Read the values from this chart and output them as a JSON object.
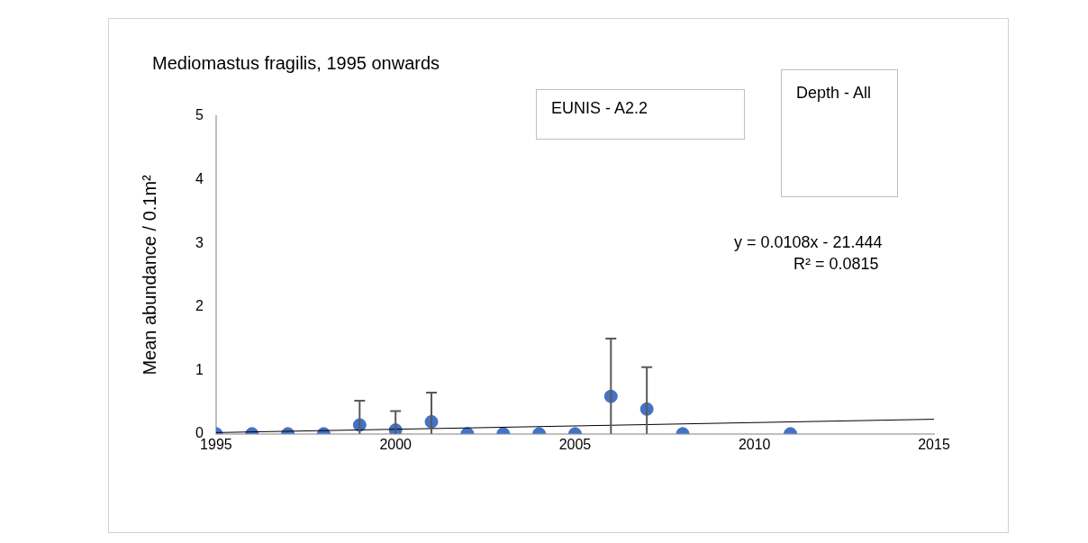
{
  "chart_data": {
    "type": "scatter",
    "title": "Mediomastus fragilis, 1995 onwards",
    "ylabel": "Mean abundance / 0.1m²",
    "x": [
      1995,
      1996,
      1997,
      1998,
      1999,
      2000,
      2001,
      2002,
      2003,
      2004,
      2005,
      2006,
      2007,
      2008,
      2011
    ],
    "series": [
      {
        "color": "#4472c4",
        "marker": "circle",
        "values": [
          0,
          0,
          0,
          0,
          0.14,
          0.06,
          0.19,
          0,
          0,
          0,
          0,
          0.59,
          0.39,
          0,
          0
        ],
        "errors": [
          null,
          null,
          null,
          null,
          [
            0,
            0.52
          ],
          [
            0,
            0.36
          ],
          [
            0,
            0.65
          ],
          null,
          null,
          null,
          null,
          [
            0,
            1.5
          ],
          [
            0,
            1.05
          ],
          null,
          null
        ]
      },
      {
        "type": "line",
        "marker": "none",
        "color": "#000000",
        "x": [
          1995,
          2015
        ],
        "values": [
          0.02,
          0.23
        ]
      }
    ],
    "xlim": [
      1995,
      2015
    ],
    "xticks": [
      1995,
      2000,
      2005,
      2010,
      2015
    ],
    "ylim": [
      0,
      5
    ],
    "yticks": [
      0,
      1,
      2,
      3,
      4,
      5
    ],
    "grid": false,
    "legend": false,
    "annotations": [
      "EUNIS - A2.2",
      "Depth - All",
      "y = 0.0108x - 21.444",
      "R² = 0.0815"
    ]
  }
}
